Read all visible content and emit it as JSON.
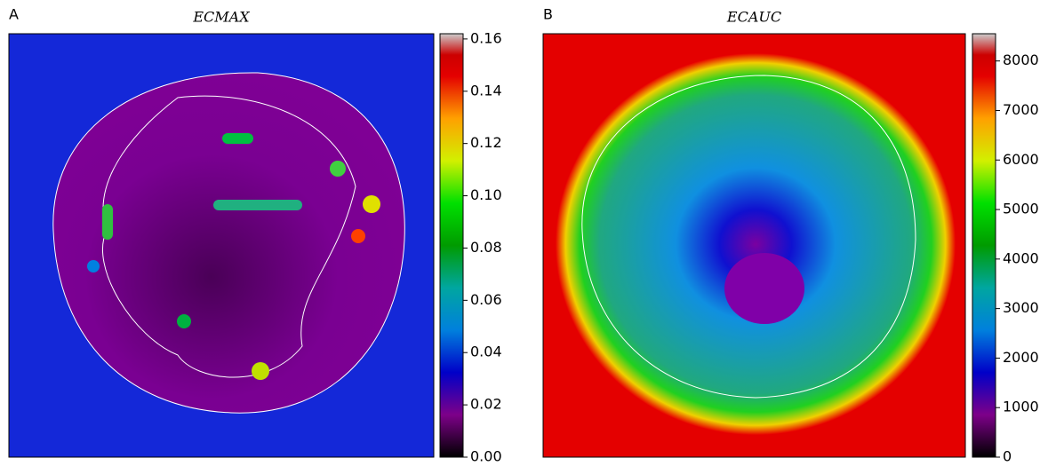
{
  "chart_data": [
    {
      "type": "image",
      "panel": "A",
      "title": "ECMAX",
      "colormap": "nipy_spectral",
      "clim": [
        0,
        0.162
      ],
      "cticks": [
        {
          "value": 0,
          "label": "0.00"
        },
        0.02,
        0.04,
        0.06,
        0.08,
        {
          "value": 0.1,
          "label": "0.10"
        },
        0.12,
        0.14,
        0.16
      ]
    },
    {
      "type": "image",
      "panel": "B",
      "title": "ECAUC",
      "colormap": "nipy_spectral",
      "clim": [
        0,
        8550
      ],
      "cticks": [
        0,
        1000,
        2000,
        3000,
        4000,
        5000,
        6000,
        7000,
        8000
      ]
    }
  ]
}
